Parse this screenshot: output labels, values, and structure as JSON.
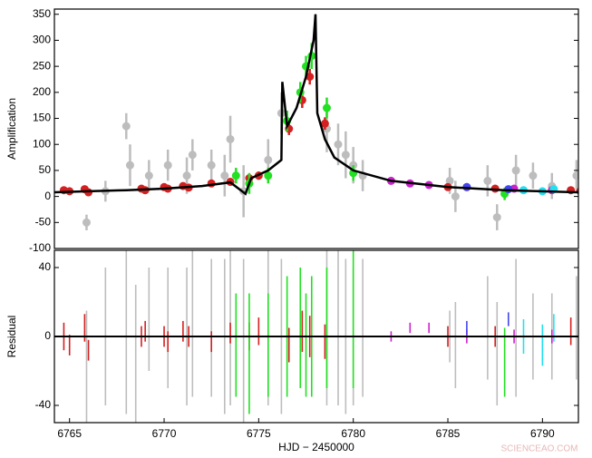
{
  "chart_data": [
    {
      "type": "scatter",
      "y_label": "Amplification",
      "xlim": [
        6764.2,
        6791.9
      ],
      "ylim": [
        -100,
        360
      ],
      "yticks": [
        -100,
        -50,
        0,
        50,
        100,
        150,
        200,
        250,
        300,
        350
      ],
      "series": [
        {
          "name": "gray",
          "color": "#bdbdbd",
          "x": [
            6765.9,
            6766.9,
            6768,
            6768.2,
            6769.2,
            6770.2,
            6771.2,
            6771.5,
            6772.5,
            6773.2,
            6773.5,
            6774.2,
            6775.5,
            6776.2,
            6778.6,
            6779.2,
            6779.6,
            6780,
            6780.5,
            6785.1,
            6785.4,
            6787.1,
            6787.6,
            6788.6,
            6789.5,
            6790.5,
            6791.8
          ],
          "values": [
            -50,
            10,
            135,
            60,
            40,
            60,
            40,
            80,
            60,
            40,
            110,
            10,
            70,
            160,
            130,
            100,
            80,
            60,
            40,
            30,
            0,
            30,
            -40,
            50,
            40,
            20,
            40
          ],
          "errors": [
            15,
            20,
            25,
            40,
            30,
            30,
            35,
            30,
            30,
            40,
            45,
            50,
            40,
            40,
            45,
            40,
            45,
            35,
            30,
            25,
            30,
            30,
            25,
            30,
            25,
            25,
            30
          ]
        },
        {
          "name": "red",
          "color": "#d42020",
          "x": [
            6764.7,
            6765,
            6765.8,
            6766,
            6768.8,
            6769,
            6770,
            6770.2,
            6771,
            6771.3,
            6772.5,
            6773.5,
            6774.5,
            6775,
            6776.6,
            6777.3,
            6777.7,
            6778.5,
            6785,
            6787.5,
            6791.5,
            6792
          ],
          "values": [
            12,
            10,
            14,
            8,
            15,
            12,
            18,
            15,
            20,
            17,
            25,
            28,
            35,
            40,
            130,
            185,
            230,
            140,
            18,
            15,
            12,
            10
          ],
          "errors": [
            6,
            6,
            6,
            6,
            6,
            6,
            6,
            6,
            6,
            6,
            6,
            6,
            8,
            8,
            12,
            15,
            15,
            12,
            6,
            6,
            6,
            6
          ]
        },
        {
          "name": "green",
          "color": "#22e022",
          "x": [
            6773.8,
            6774.5,
            6775.5,
            6776.5,
            6777.2,
            6777.5,
            6777.8,
            6778.6,
            6780,
            6788
          ],
          "values": [
            40,
            25,
            40,
            145,
            200,
            250,
            270,
            170,
            45,
            5
          ],
          "errors": [
            15,
            20,
            15,
            20,
            20,
            20,
            25,
            20,
            15,
            12
          ]
        },
        {
          "name": "magenta",
          "color": "#cc22cc",
          "x": [
            6782,
            6783,
            6784,
            6786,
            6788.5,
            6790.5
          ],
          "values": [
            30,
            25,
            22,
            18,
            15,
            12
          ],
          "errors": [
            4,
            4,
            4,
            4,
            4,
            4
          ]
        },
        {
          "name": "blue",
          "color": "#4444ee",
          "x": [
            6786,
            6788.2
          ],
          "values": [
            18,
            14
          ],
          "errors": [
            5,
            5
          ]
        },
        {
          "name": "cyan",
          "color": "#22e0f0",
          "x": [
            6789,
            6790,
            6790.6
          ],
          "values": [
            12,
            10,
            14
          ],
          "errors": [
            6,
            6,
            6
          ]
        },
        {
          "name": "model",
          "type": "line",
          "color": "#000000",
          "x": [
            6764.2,
            6766,
            6768,
            6770,
            6772,
            6773.5,
            6774.3,
            6774.6,
            6775.5,
            6776.2,
            6776.25,
            6776.5,
            6777,
            6777.5,
            6777.9,
            6778,
            6778.1,
            6778.5,
            6779,
            6780,
            6782,
            6785,
            6788,
            6791.9
          ],
          "values": [
            8,
            10,
            12,
            15,
            20,
            27,
            5,
            35,
            50,
            70,
            220,
            135,
            170,
            230,
            300,
            350,
            160,
            110,
            75,
            50,
            30,
            18,
            12,
            8
          ]
        }
      ]
    },
    {
      "type": "errorbar",
      "y_label": "Residual",
      "x_label": "HJD − 2450000",
      "xlim": [
        6764.2,
        6791.9
      ],
      "ylim": [
        -50,
        50
      ],
      "xticks": [
        6765,
        6770,
        6775,
        6780,
        6785,
        6790
      ],
      "yticks": [
        -40,
        0,
        40
      ],
      "reference_line": 0,
      "series": [
        {
          "name": "gray",
          "color": "#bdbdbd",
          "x": [
            6765.9,
            6766.9,
            6768,
            6768.5,
            6769.2,
            6770.2,
            6771.2,
            6771.5,
            6772.5,
            6773.2,
            6773.5,
            6774.2,
            6775.5,
            6776.2,
            6778.6,
            6779.2,
            6779.6,
            6780,
            6780.5,
            6785.1,
            6785.4,
            6787.1,
            6787.6,
            6788.6,
            6789.5,
            6790.5,
            6791.8
          ],
          "values": [
            -20,
            0,
            5,
            -10,
            10,
            5,
            0,
            10,
            5,
            0,
            10,
            -10,
            5,
            0,
            10,
            5,
            0,
            0,
            5,
            0,
            -5,
            5,
            -10,
            5,
            0,
            0,
            5
          ],
          "errors": [
            35,
            40,
            50,
            40,
            30,
            35,
            40,
            45,
            40,
            45,
            50,
            55,
            45,
            45,
            50,
            45,
            45,
            40,
            40,
            15,
            25,
            30,
            30,
            40,
            25,
            25,
            30
          ]
        },
        {
          "name": "red",
          "color": "#d42020",
          "x": [
            6764.7,
            6765,
            6765.8,
            6766,
            6768.8,
            6769,
            6770,
            6770.2,
            6771,
            6771.3,
            6772.5,
            6773.5,
            6774.5,
            6775,
            6776.6,
            6777.3,
            6777.7,
            6778.5,
            6785,
            6787.5,
            6791.5,
            6792
          ],
          "values": [
            0,
            -5,
            5,
            -8,
            0,
            3,
            0,
            -3,
            3,
            0,
            -3,
            2,
            0,
            3,
            -5,
            3,
            0,
            -3,
            0,
            0,
            3,
            -3
          ],
          "errors": [
            8,
            6,
            8,
            6,
            6,
            6,
            6,
            6,
            6,
            6,
            6,
            6,
            8,
            8,
            10,
            12,
            12,
            10,
            6,
            6,
            8,
            6
          ]
        },
        {
          "name": "green",
          "color": "#22e022",
          "x": [
            6773.8,
            6774.5,
            6775.5,
            6776.5,
            6777.2,
            6777.5,
            6777.8,
            6778.6,
            6780,
            6788
          ],
          "values": [
            -5,
            -10,
            -5,
            0,
            5,
            -5,
            0,
            5,
            10,
            -15
          ],
          "errors": [
            30,
            35,
            30,
            35,
            35,
            30,
            35,
            35,
            40,
            20
          ]
        },
        {
          "name": "magenta",
          "color": "#cc22cc",
          "x": [
            6782,
            6783,
            6784,
            6786,
            6788.5,
            6790.5
          ],
          "values": [
            0,
            5,
            5,
            0,
            0,
            0
          ],
          "errors": [
            3,
            3,
            3,
            4,
            4,
            4
          ]
        },
        {
          "name": "blue",
          "color": "#4444ee",
          "x": [
            6786,
            6788.2
          ],
          "values": [
            5,
            10
          ],
          "errors": [
            4,
            4
          ]
        },
        {
          "name": "cyan",
          "color": "#22e0f0",
          "x": [
            6789,
            6790,
            6790.6
          ],
          "values": [
            0,
            -5,
            5
          ],
          "errors": [
            10,
            12,
            8
          ]
        }
      ]
    }
  ],
  "watermark": "SCIENCEAO.COM"
}
